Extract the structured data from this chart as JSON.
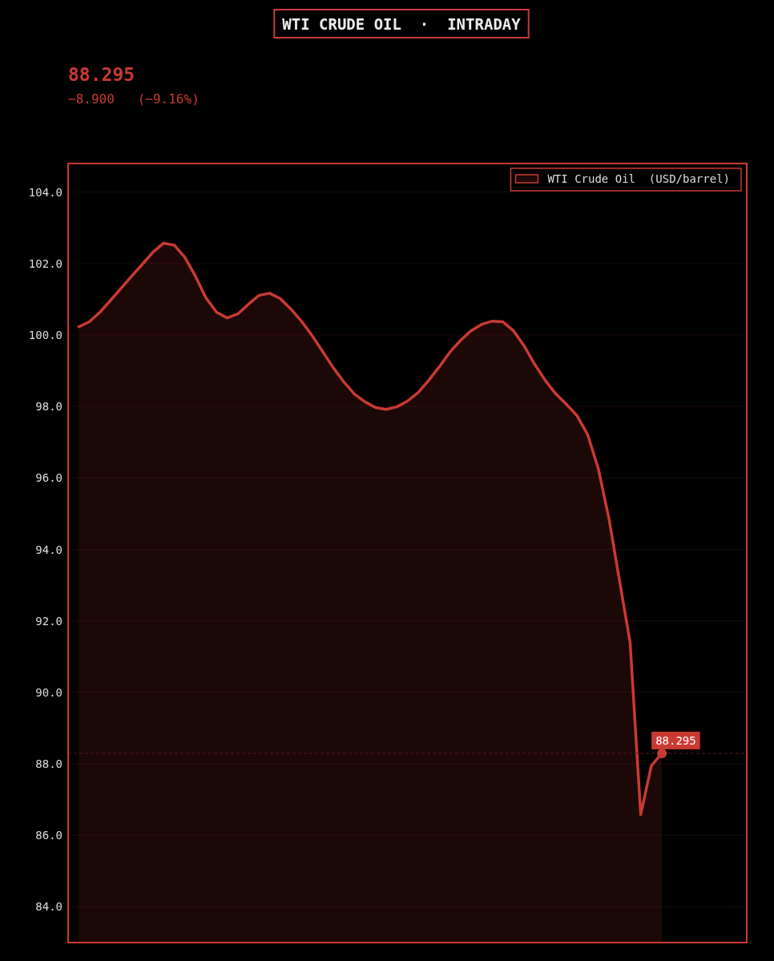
{
  "chart_data": {
    "type": "area",
    "title": "WTI CRUDE OIL  ·  INTRADAY",
    "annotations": [
      "88.295",
      "−8.900   (−9.16%)",
      {
        "text": "88.295",
        "y": 88.295
      }
    ],
    "categories": [
      null,
      null,
      null,
      null,
      null,
      null,
      null,
      null,
      null,
      null,
      null,
      null,
      null,
      null,
      null,
      null,
      null,
      null,
      null,
      null,
      null,
      null,
      null,
      null,
      null,
      null,
      null,
      null,
      null,
      null,
      null,
      null,
      null,
      null,
      null,
      null,
      null,
      null,
      null,
      null,
      null,
      null,
      null,
      null,
      null,
      null,
      null,
      null,
      null,
      null,
      null,
      null,
      null,
      null,
      null,
      null
    ],
    "series": [
      {
        "name": "WTI Crude Oil  (USD/barrel)",
        "color": "#c93a32",
        "values": [
          100.23,
          100.37,
          100.64,
          100.97,
          101.31,
          101.65,
          101.98,
          102.32,
          102.57,
          102.52,
          102.18,
          101.65,
          101.04,
          100.64,
          100.48,
          100.59,
          100.86,
          101.11,
          101.17,
          101.02,
          100.73,
          100.39,
          99.99,
          99.54,
          99.09,
          98.69,
          98.35,
          98.13,
          97.97,
          97.92,
          97.99,
          98.15,
          98.39,
          98.73,
          99.11,
          99.52,
          99.85,
          100.12,
          100.3,
          100.39,
          100.37,
          100.12,
          99.7,
          99.18,
          98.73,
          98.35,
          98.06,
          97.74,
          97.21,
          96.26,
          94.87,
          93.13,
          91.4,
          86.58,
          87.95,
          88.295
        ]
      }
    ],
    "ylim": [
      83,
      104.8
    ],
    "yticks": [
      {
        "value": 84,
        "label": "84.0"
      },
      {
        "value": 86,
        "label": "86.0"
      },
      {
        "value": 88,
        "label": "88.0"
      },
      {
        "value": 90,
        "label": "90.0"
      },
      {
        "value": 92,
        "label": "92.0"
      },
      {
        "value": 94,
        "label": "94.0"
      },
      {
        "value": 96,
        "label": "96.0"
      },
      {
        "value": 98,
        "label": "98.0"
      },
      {
        "value": 100,
        "label": "100.0"
      },
      {
        "value": 102,
        "label": "102.0"
      },
      {
        "value": 104,
        "label": "104.0"
      }
    ],
    "tick_labels": "y",
    "grid": "y",
    "legend": "top right",
    "ref_lines": [
      {
        "axis": "y",
        "value": 88.295,
        "line_style": "dashed",
        "color": "#5a1a18"
      }
    ]
  }
}
